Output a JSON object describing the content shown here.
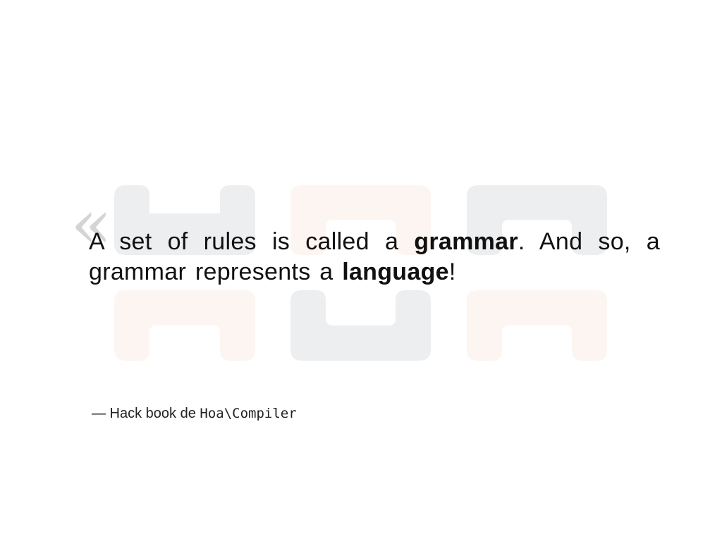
{
  "slide": {
    "quote_mark": "«",
    "quote": {
      "part1": "A set of rules is called a ",
      "term1": "grammar",
      "part2": ". And so, a grammar represents a ",
      "term2": "language",
      "part3": "!"
    },
    "attribution": {
      "prefix": "— Hack book de ",
      "code": "Hoa\\Compiler"
    }
  },
  "colors": {
    "background": "#ffffff",
    "logo_gray": "#eceef0",
    "logo_peach": "#fdf5f1",
    "text": "#111111"
  }
}
